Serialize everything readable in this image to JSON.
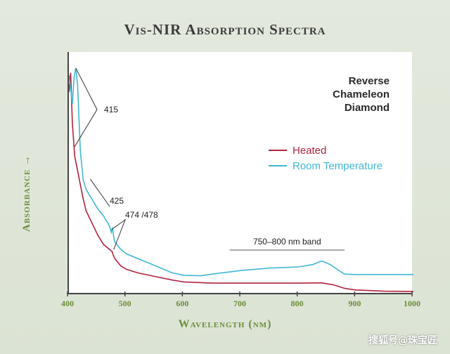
{
  "title": "Vis-NIR Absorption Spectra",
  "sample_label": [
    "Reverse",
    "Chameleon",
    "Diamond"
  ],
  "watermark": "搜狐号@珠宝匠",
  "chart_data": {
    "type": "line",
    "title": "Vis-NIR Absorption Spectra",
    "xlabel": "Wavelength (nm)",
    "ylabel": "Absorbance →",
    "xlim": [
      400,
      1000
    ],
    "ylim": [
      0,
      1
    ],
    "x_ticks": [
      400,
      500,
      600,
      700,
      800,
      900,
      1000
    ],
    "y_ticks_shown": false,
    "grid": false,
    "legend_position": "right-center",
    "series": [
      {
        "name": "Heated",
        "color": "#b3223f",
        "points": [
          [
            400,
            0.85
          ],
          [
            403,
            0.93
          ],
          [
            406,
            0.72
          ],
          [
            410,
            0.58
          ],
          [
            415,
            0.52
          ],
          [
            420,
            0.46
          ],
          [
            425,
            0.4
          ],
          [
            430,
            0.35
          ],
          [
            440,
            0.3
          ],
          [
            450,
            0.25
          ],
          [
            460,
            0.21
          ],
          [
            470,
            0.19
          ],
          [
            475,
            0.18
          ],
          [
            478,
            0.16
          ],
          [
            480,
            0.15
          ],
          [
            490,
            0.12
          ],
          [
            500,
            0.105
          ],
          [
            520,
            0.09
          ],
          [
            550,
            0.075
          ],
          [
            580,
            0.06
          ],
          [
            600,
            0.052
          ],
          [
            650,
            0.047
          ],
          [
            700,
            0.047
          ],
          [
            750,
            0.047
          ],
          [
            800,
            0.047
          ],
          [
            840,
            0.048
          ],
          [
            860,
            0.04
          ],
          [
            880,
            0.025
          ],
          [
            900,
            0.018
          ],
          [
            950,
            0.013
          ],
          [
            1000,
            0.012
          ]
        ]
      },
      {
        "name": "Room Temperature",
        "color": "#3fb7d6",
        "points": [
          [
            400,
            0.92
          ],
          [
            403,
            0.86
          ],
          [
            406,
            0.8
          ],
          [
            409,
            0.91
          ],
          [
            412,
            0.95
          ],
          [
            415,
            0.88
          ],
          [
            420,
            0.6
          ],
          [
            425,
            0.48
          ],
          [
            430,
            0.44
          ],
          [
            440,
            0.4
          ],
          [
            450,
            0.36
          ],
          [
            460,
            0.33
          ],
          [
            470,
            0.29
          ],
          [
            474,
            0.26
          ],
          [
            476,
            0.28
          ],
          [
            478,
            0.24
          ],
          [
            480,
            0.22
          ],
          [
            490,
            0.19
          ],
          [
            500,
            0.17
          ],
          [
            520,
            0.15
          ],
          [
            550,
            0.12
          ],
          [
            580,
            0.09
          ],
          [
            600,
            0.08
          ],
          [
            630,
            0.078
          ],
          [
            650,
            0.085
          ],
          [
            700,
            0.1
          ],
          [
            750,
            0.11
          ],
          [
            800,
            0.115
          ],
          [
            825,
            0.125
          ],
          [
            840,
            0.14
          ],
          [
            855,
            0.125
          ],
          [
            870,
            0.1
          ],
          [
            880,
            0.085
          ],
          [
            900,
            0.083
          ],
          [
            950,
            0.083
          ],
          [
            1000,
            0.083
          ]
        ]
      }
    ],
    "annotations": [
      {
        "text": "415",
        "targets": [
          [
            412,
            0.95
          ],
          [
            410,
            0.62
          ]
        ]
      },
      {
        "text": "425",
        "targets": [
          [
            425,
            0.46
          ]
        ]
      },
      {
        "text": "474 /478",
        "targets": [
          [
            474,
            0.26
          ],
          [
            478,
            0.17
          ]
        ]
      },
      {
        "text": "750–800 nm band",
        "span": [
          680,
          880
        ]
      }
    ]
  }
}
